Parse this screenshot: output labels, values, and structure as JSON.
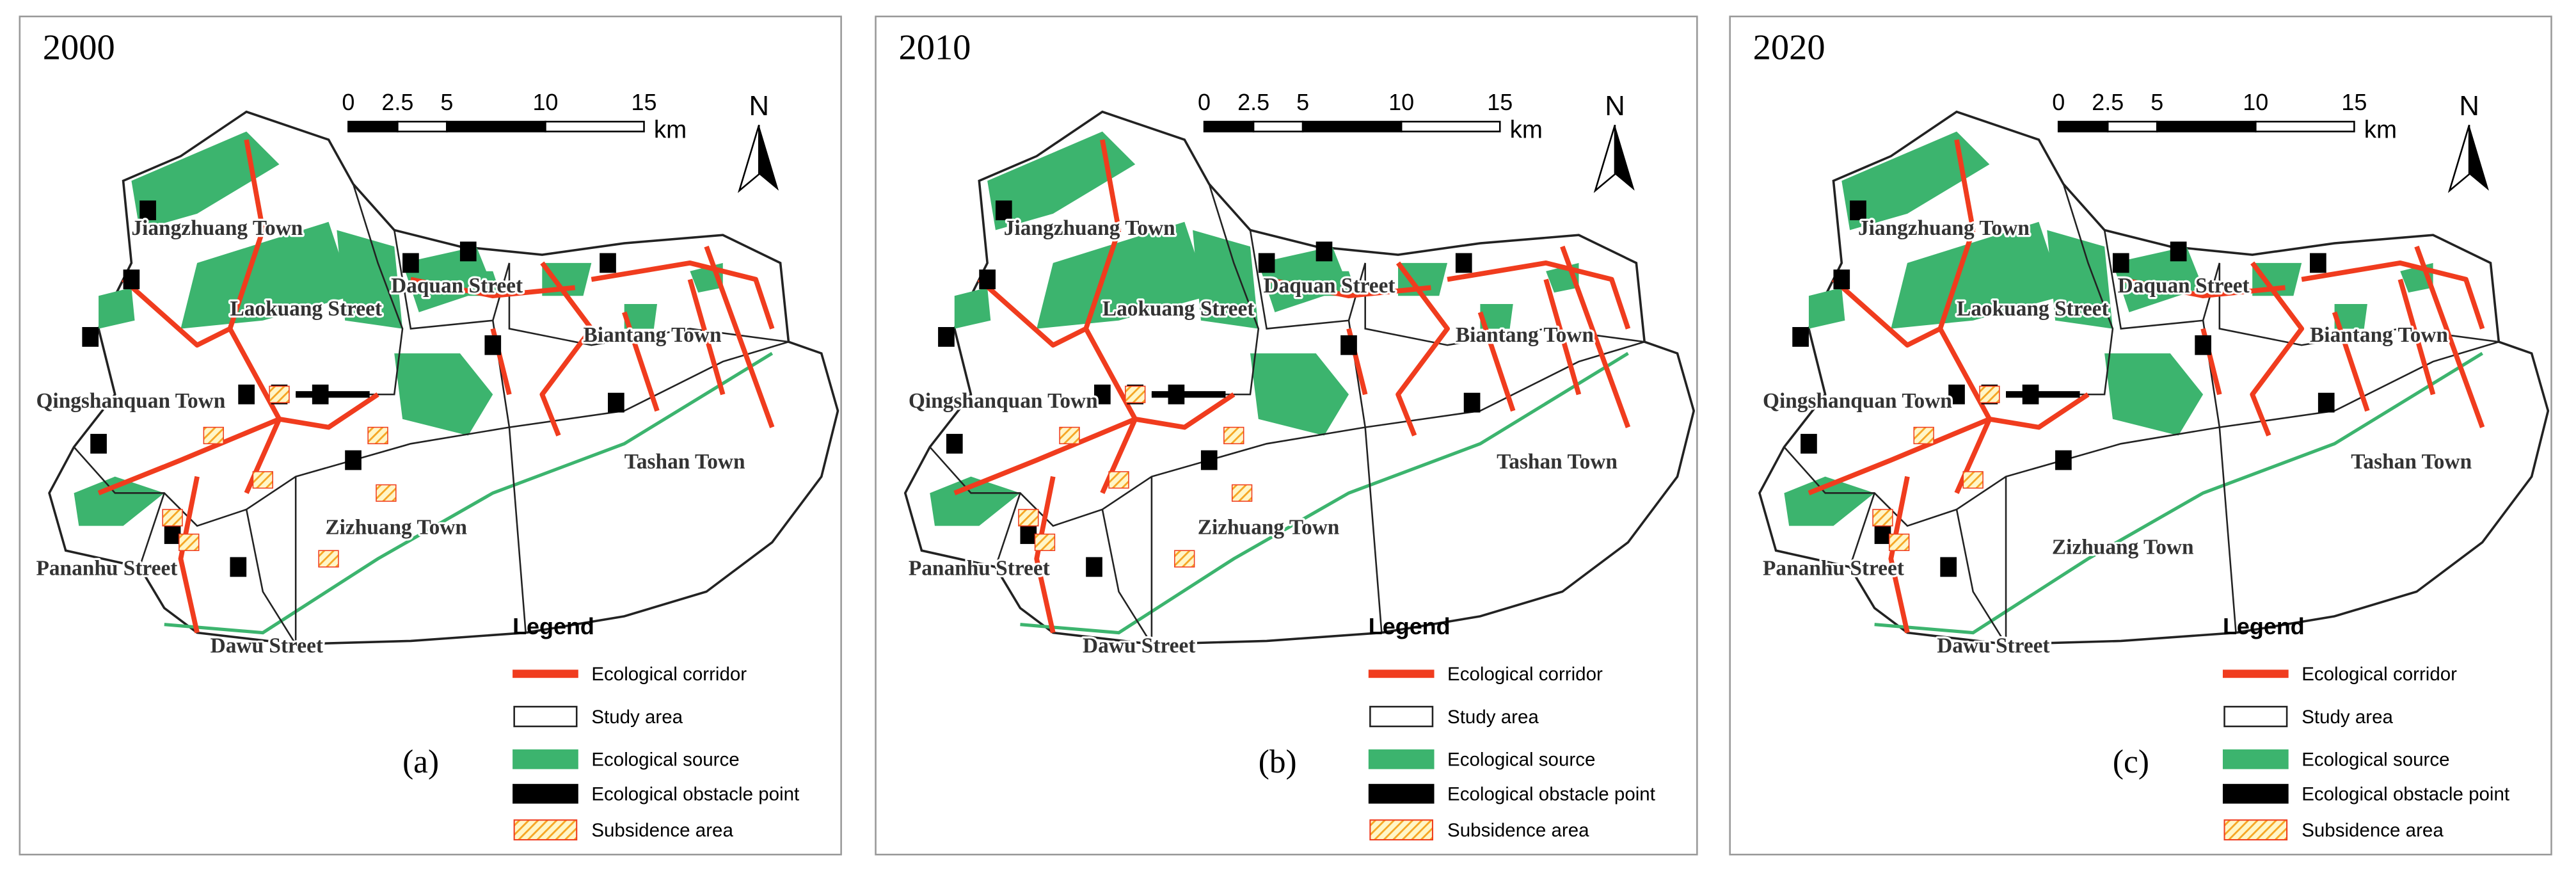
{
  "panels": [
    {
      "year": "2000",
      "label": "(a)"
    },
    {
      "year": "2010",
      "label": "(b)"
    },
    {
      "year": "2020",
      "label": "(c)"
    }
  ],
  "scale_bar": {
    "ticks": [
      0,
      2.5,
      5,
      10,
      15
    ],
    "unit": "km"
  },
  "north": "N",
  "towns": [
    "Jiangzhuang Town",
    "Laokuang Street",
    "Daquan Street",
    "Biantang Town",
    "Qingshanquan Town",
    "Tashan Town",
    "Zizhuang Town",
    "Pananhu Street",
    "Dawu Street"
  ],
  "legend": {
    "title": "Legend",
    "items": [
      {
        "label": "Ecological corridor",
        "color": "#f03c1e"
      },
      {
        "label": "Study area",
        "color": "#ffffff"
      },
      {
        "label": "Ecological source",
        "color": "#3cb46e"
      },
      {
        "label": "Ecological obstacle point",
        "color": "#000000"
      },
      {
        "label": "Subsidence area",
        "color": "#f5a623"
      }
    ]
  }
}
